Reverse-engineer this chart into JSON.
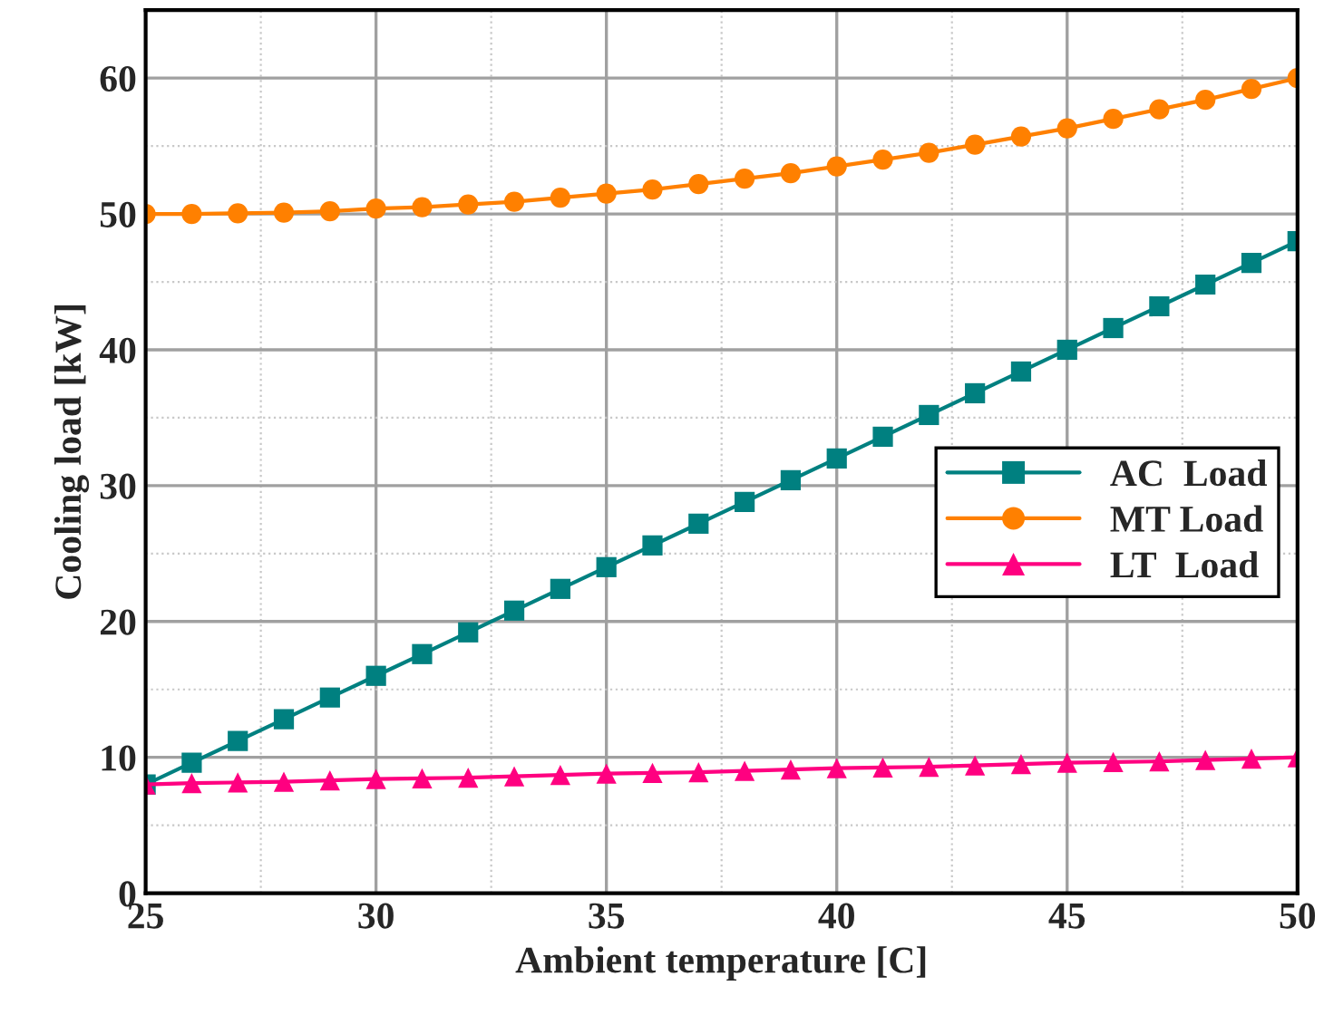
{
  "chart_data": {
    "type": "line",
    "xlabel": "Ambient temperature [C]",
    "ylabel": "Cooling load [kW]",
    "x": [
      25,
      26,
      27,
      28,
      29,
      30,
      31,
      32,
      33,
      34,
      35,
      36,
      37,
      38,
      39,
      40,
      41,
      42,
      43,
      44,
      45,
      46,
      47,
      48,
      49,
      50
    ],
    "series": [
      {
        "name": "AC  Load",
        "color": "#008080",
        "marker": "square",
        "values": [
          8,
          9.6,
          11.2,
          12.8,
          14.4,
          16,
          17.6,
          19.2,
          20.8,
          22.4,
          24,
          25.6,
          27.2,
          28.8,
          30.4,
          32,
          33.6,
          35.2,
          36.8,
          38.4,
          40,
          41.6,
          43.2,
          44.8,
          46.4,
          48
        ]
      },
      {
        "name": "MT Load",
        "color": "#ff8000",
        "marker": "circle",
        "values": [
          50,
          50,
          50.05,
          50.1,
          50.2,
          50.4,
          50.5,
          50.7,
          50.9,
          51.2,
          51.5,
          51.8,
          52.2,
          52.6,
          53,
          53.5,
          54,
          54.5,
          55.1,
          55.7,
          56.3,
          57,
          57.7,
          58.4,
          59.2,
          60
        ]
      },
      {
        "name": "LT  Load",
        "color": "#ff0080",
        "marker": "triangle",
        "values": [
          8,
          8.1,
          8.15,
          8.2,
          8.3,
          8.4,
          8.45,
          8.5,
          8.6,
          8.7,
          8.8,
          8.85,
          8.9,
          9,
          9.1,
          9.2,
          9.25,
          9.3,
          9.4,
          9.5,
          9.6,
          9.65,
          9.7,
          9.8,
          9.9,
          10
        ]
      }
    ],
    "xlim": [
      25,
      50
    ],
    "xticks": [
      25,
      30,
      35,
      40,
      45,
      50
    ],
    "ylim": [
      0,
      65
    ],
    "yticks": [
      0,
      10,
      20,
      30,
      40,
      50,
      60
    ],
    "grid": true,
    "legend": "right",
    "line_style": "solid"
  }
}
